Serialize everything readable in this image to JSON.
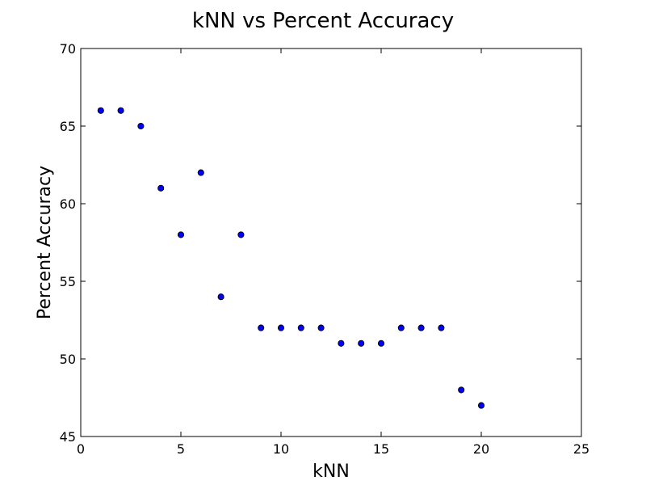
{
  "chart_data": {
    "type": "scatter",
    "title": "kNN vs Percent Accuracy",
    "xlabel": "kNN",
    "ylabel": "Percent Accuracy",
    "xlim": [
      0,
      25
    ],
    "ylim": [
      45,
      70
    ],
    "xticks": [
      "0",
      "5",
      "10",
      "15",
      "20",
      "25"
    ],
    "yticks": [
      "45",
      "50",
      "55",
      "60",
      "65",
      "70"
    ],
    "grid": false,
    "legend": "none",
    "marker_color": "#0000ff",
    "marker_edge_color": "#000000",
    "series": [
      {
        "x": [
          1,
          2,
          3,
          4,
          5,
          6,
          7,
          8,
          9,
          10,
          11,
          12,
          13,
          14,
          15,
          16,
          17,
          18,
          19,
          20
        ],
        "y": [
          66,
          66,
          65,
          61,
          58,
          62,
          54,
          58,
          52,
          52,
          52,
          52,
          51,
          51,
          51,
          52,
          52,
          52,
          48,
          47
        ]
      }
    ]
  }
}
